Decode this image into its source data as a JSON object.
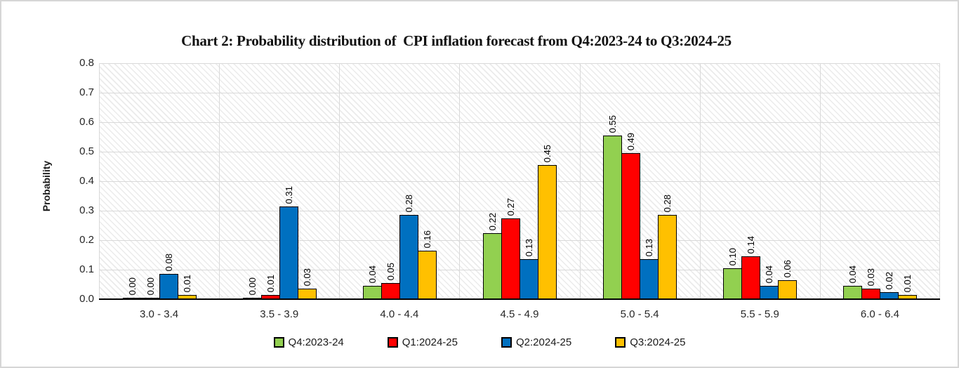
{
  "chart_data": {
    "type": "bar",
    "title": "Chart 2: Probability distribution of  CPI inflation forecast from Q4:2023-24 to Q3:2024-25",
    "ylabel": "Probability",
    "xlabel": "",
    "ylim": [
      0,
      0.8
    ],
    "ytick_step": 0.1,
    "grid": true,
    "plot_background": "diagonal-hatch",
    "legend_position": "bottom",
    "data_labels": {
      "show": true,
      "rotation": 90,
      "decimals": 2
    },
    "categories": [
      "3.0 - 3.4",
      "3.5 - 3.9",
      "4.0 - 4.4",
      "4.5 - 4.9",
      "5.0 - 5.4",
      "5.5 - 5.9",
      "6.0 - 6.4"
    ],
    "series": [
      {
        "name": "Q4:2023-24",
        "color": "#92D050",
        "values": [
          0.0,
          0.0,
          0.04,
          0.22,
          0.55,
          0.1,
          0.04
        ]
      },
      {
        "name": "Q1:2024-25",
        "color": "#FF0000",
        "values": [
          0.0,
          0.01,
          0.05,
          0.27,
          0.49,
          0.14,
          0.03
        ]
      },
      {
        "name": "Q2:2024-25",
        "color": "#0070C0",
        "values": [
          0.08,
          0.31,
          0.28,
          0.13,
          0.13,
          0.04,
          0.02
        ]
      },
      {
        "name": "Q3:2024-25",
        "color": "#FFC000",
        "values": [
          0.01,
          0.03,
          0.16,
          0.45,
          0.28,
          0.06,
          0.01
        ]
      }
    ],
    "colors": {
      "gridline": "#d9d9d9",
      "axis_line": "#000000",
      "tick_text": "#262626",
      "bar_outline": "#000000"
    }
  }
}
